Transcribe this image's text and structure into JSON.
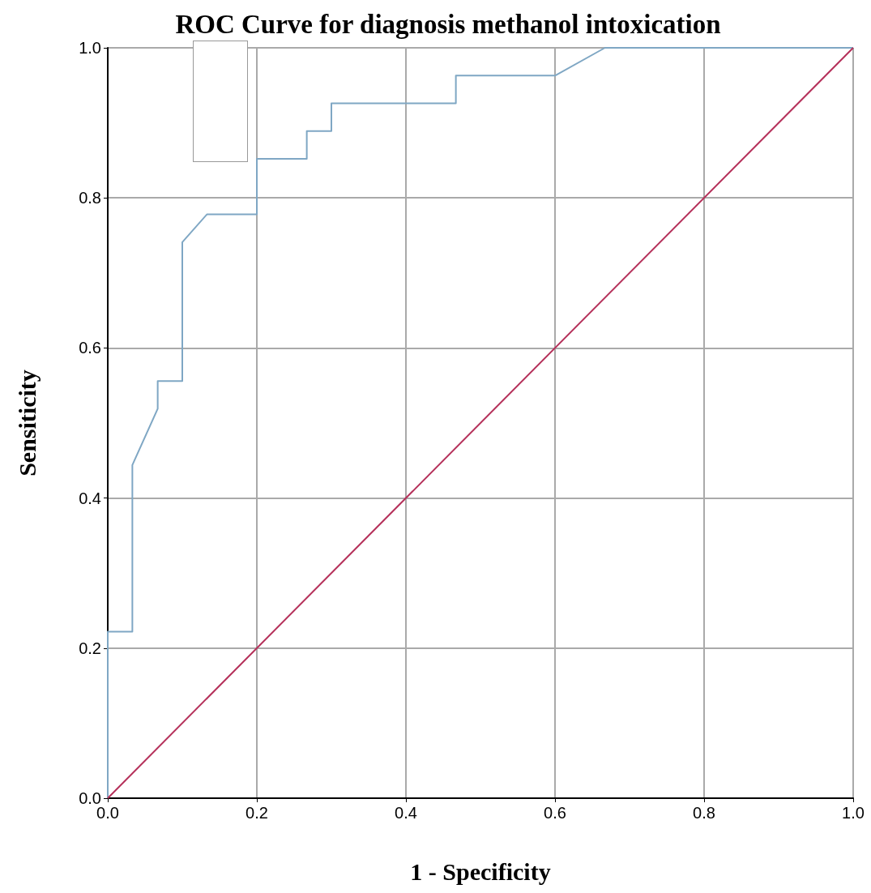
{
  "chart_data": {
    "type": "line",
    "title": "ROC Curve for diagnosis methanol intoxication",
    "xlabel": "1 - Specificity",
    "ylabel": "Sensiticity",
    "series": [
      {
        "color": "#7fa7c4",
        "x": [
          0,
          0,
          0.033,
          0.033,
          0.067,
          0.067,
          0.1,
          0.1,
          0.133,
          0.2,
          0.2,
          0.267,
          0.267,
          0.3,
          0.3,
          0.467,
          0.467,
          0.6,
          0.667,
          1
        ],
        "values": [
          0,
          0.222,
          0.222,
          0.444,
          0.519,
          0.556,
          0.556,
          0.741,
          0.778,
          0.778,
          0.852,
          0.852,
          0.889,
          0.889,
          0.926,
          0.926,
          0.963,
          0.963,
          1,
          1
        ]
      },
      {
        "color": "#b5305a",
        "x": [
          0,
          1
        ],
        "values": [
          0,
          1
        ]
      }
    ],
    "xlim": [
      0,
      1
    ],
    "ylim": [
      0,
      1
    ],
    "xticks": [
      {
        "value": 0,
        "label": "0.0"
      },
      {
        "value": 0.2,
        "label": "0.2"
      },
      {
        "value": 0.4,
        "label": "0.4"
      },
      {
        "value": 0.6,
        "label": "0.6"
      },
      {
        "value": 0.8,
        "label": "0.8"
      },
      {
        "value": 1,
        "label": "1.0"
      }
    ],
    "yticks": [
      {
        "value": 0,
        "label": "0.0"
      },
      {
        "value": 0.2,
        "label": "0.2"
      },
      {
        "value": 0.4,
        "label": "0.4"
      },
      {
        "value": 0.6,
        "label": "0.6"
      },
      {
        "value": 0.8,
        "label": "0.8"
      },
      {
        "value": 1,
        "label": "1.0"
      }
    ],
    "grid": true,
    "marker": "none",
    "line_style": "solid"
  }
}
